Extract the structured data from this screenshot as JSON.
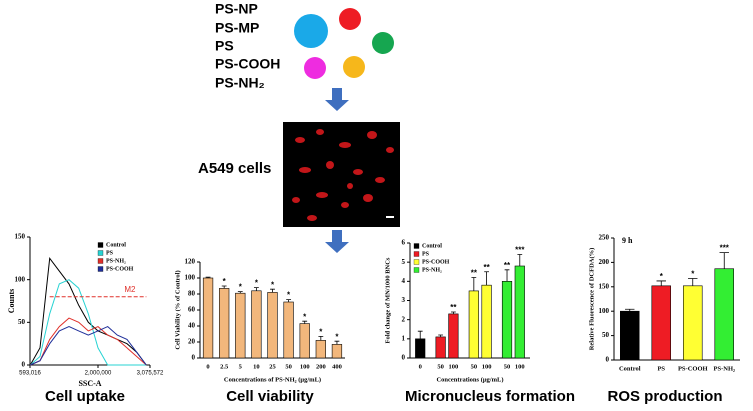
{
  "legend_items": [
    "PS-NP",
    "PS-MP",
    "PS",
    "PS-COOH",
    "PS-NH₂"
  ],
  "cell_label": "A549 cells",
  "chart_data": [
    {
      "type": "line",
      "caption": "Cell uptake",
      "x_label": "SSC-A",
      "y_label": "Counts",
      "x": [
        600000,
        800000,
        1000000,
        1200000,
        1400000,
        1600000,
        1800000,
        2000000,
        2200000,
        2400000,
        2600000,
        2800000,
        3000000
      ],
      "xlim": [
        593016,
        3075572
      ],
      "xticks": [
        {
          "value": 593016,
          "label": "593,016"
        },
        {
          "value": 2000000,
          "label": "2,000,000"
        },
        {
          "value": 3075572,
          "label": "3,075,572"
        }
      ],
      "ylim": [
        0,
        150
      ],
      "yticks": [
        0,
        50,
        100,
        150
      ],
      "series": [
        {
          "name": "Control",
          "color": "#000000",
          "values": [
            0,
            20,
            125,
            110,
            95,
            70,
            50,
            40,
            35,
            30,
            25,
            15,
            0
          ]
        },
        {
          "name": "PS",
          "color": "#27d3d3",
          "values": [
            0,
            10,
            60,
            95,
            100,
            90,
            60,
            20,
            0,
            0,
            0,
            0,
            0
          ]
        },
        {
          "name": "PS-NH₂",
          "color": "#e0302a",
          "values": [
            0,
            5,
            30,
            45,
            55,
            50,
            40,
            45,
            35,
            30,
            20,
            10,
            0
          ]
        },
        {
          "name": "PS-COOH",
          "color": "#1f2f9a",
          "values": [
            0,
            5,
            25,
            40,
            45,
            40,
            35,
            40,
            45,
            35,
            30,
            15,
            0
          ]
        }
      ],
      "marker": {
        "label": "M2",
        "y": 80,
        "x": [
          1000000,
          3000000
        ],
        "color": "#e0302a"
      },
      "legend_position": "upper right"
    },
    {
      "type": "bar",
      "caption": "Cell viability",
      "y_label": "Cell Viability (% of Control)",
      "x_label": "Concentrations of PS-NH₂ (μg/mL)",
      "categories": [
        "0",
        "2.5",
        "5",
        "10",
        "25",
        "50",
        "100",
        "200",
        "400"
      ],
      "values": [
        100,
        87,
        81,
        84,
        82,
        70,
        43,
        22,
        17
      ],
      "errors": [
        1,
        3,
        2,
        4,
        4,
        3,
        3,
        5,
        4
      ],
      "significance": [
        null,
        "*",
        "*",
        "*",
        "*",
        "*",
        "*",
        "*",
        "*"
      ],
      "color": "#f2b77c",
      "ylim": [
        0,
        120
      ],
      "yticks": [
        0,
        20,
        40,
        60,
        80,
        100,
        120
      ]
    },
    {
      "type": "grouped_bar",
      "caption": "Micronucleus formation",
      "y_label": "Fold change of MN/1000 BNCs",
      "x_label": "Concentrations (μg/mL)",
      "series": [
        {
          "name": "Control",
          "color": "#000000",
          "labels": [
            "0"
          ],
          "values": [
            1.0
          ],
          "errors": [
            0.4
          ],
          "significance": [
            null
          ]
        },
        {
          "name": "PS",
          "color": "#ee1c24",
          "labels": [
            "50",
            "100"
          ],
          "values": [
            1.1,
            2.3
          ],
          "errors": [
            0.1,
            0.1
          ],
          "significance": [
            null,
            "**"
          ]
        },
        {
          "name": "PS-COOH",
          "color": "#ffff33",
          "labels": [
            "50",
            "100"
          ],
          "values": [
            3.5,
            3.8
          ],
          "errors": [
            0.7,
            0.7
          ],
          "significance": [
            "**",
            "**"
          ]
        },
        {
          "name": "PS-NH₂",
          "color": "#33ee33",
          "labels": [
            "50",
            "100"
          ],
          "values": [
            4.0,
            4.8
          ],
          "errors": [
            0.6,
            0.6
          ],
          "significance": [
            "**",
            "***"
          ]
        }
      ],
      "ylim": [
        0,
        6
      ],
      "yticks": [
        0,
        1,
        2,
        3,
        4,
        5,
        6
      ],
      "legend_position": "upper left"
    },
    {
      "type": "bar",
      "caption": "ROS production",
      "annotation": "9 h",
      "y_label": "Relative Fluorescence of DCFDA(%)",
      "categories": [
        "Control",
        "PS",
        "PS-COOH",
        "PS-NH₂"
      ],
      "values": [
        100,
        152,
        152,
        187
      ],
      "errors": [
        4,
        10,
        15,
        33
      ],
      "significance": [
        null,
        "*",
        "*",
        "***"
      ],
      "colors": [
        "#000000",
        "#ee1c24",
        "#ffff33",
        "#33ee33"
      ],
      "ylim": [
        0,
        250
      ],
      "yticks": [
        0,
        50,
        100,
        150,
        200,
        250
      ]
    }
  ]
}
